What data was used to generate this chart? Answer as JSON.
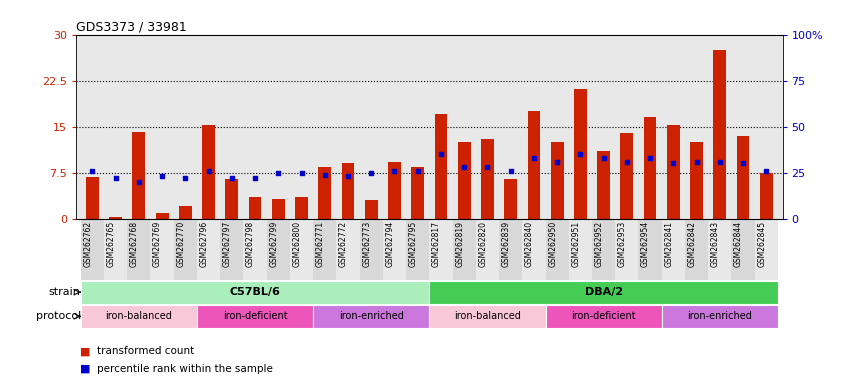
{
  "title": "GDS3373 / 33981",
  "samples": [
    "GSM262762",
    "GSM262765",
    "GSM262768",
    "GSM262769",
    "GSM262770",
    "GSM262796",
    "GSM262797",
    "GSM262798",
    "GSM262799",
    "GSM262800",
    "GSM262771",
    "GSM262772",
    "GSM262773",
    "GSM262794",
    "GSM262795",
    "GSM262817",
    "GSM262819",
    "GSM262820",
    "GSM262839",
    "GSM262840",
    "GSM262950",
    "GSM262951",
    "GSM262952",
    "GSM262953",
    "GSM262954",
    "GSM262841",
    "GSM262842",
    "GSM262843",
    "GSM262844",
    "GSM262845"
  ],
  "red_values": [
    6.8,
    0.2,
    14.2,
    1.0,
    2.0,
    15.2,
    6.5,
    3.5,
    3.2,
    3.5,
    8.5,
    9.0,
    3.0,
    9.2,
    8.5,
    17.0,
    12.5,
    13.0,
    6.5,
    17.5,
    12.5,
    21.2,
    11.0,
    14.0,
    16.5,
    15.2,
    12.5,
    27.5,
    13.5,
    7.5
  ],
  "blue_pct": [
    26,
    22,
    20,
    23,
    22,
    26,
    22,
    22,
    25,
    25,
    24,
    23,
    25,
    26,
    26,
    35,
    28,
    28,
    26,
    33,
    31,
    35,
    33,
    31,
    33,
    30,
    31,
    31,
    30,
    26
  ],
  "ylim_left": [
    0,
    30
  ],
  "ylim_right": [
    0,
    100
  ],
  "yticks_left": [
    0,
    7.5,
    15,
    22.5,
    30
  ],
  "ytick_labels_left": [
    "0",
    "7.5",
    "15",
    "22.5",
    "30"
  ],
  "ytick_labels_right": [
    "0",
    "25",
    "50",
    "75",
    "100%"
  ],
  "strain_groups": [
    {
      "label": "C57BL/6",
      "start": 0,
      "end": 15,
      "color": "#aaeebb"
    },
    {
      "label": "DBA/2",
      "start": 15,
      "end": 30,
      "color": "#44cc55"
    }
  ],
  "protocol_groups": [
    {
      "label": "iron-balanced",
      "start": 0,
      "end": 5,
      "color": "#f9c8d8"
    },
    {
      "label": "iron-deficient",
      "start": 5,
      "end": 10,
      "color": "#ee55bb"
    },
    {
      "label": "iron-enriched",
      "start": 10,
      "end": 15,
      "color": "#cc77dd"
    },
    {
      "label": "iron-balanced",
      "start": 15,
      "end": 20,
      "color": "#f9c8d8"
    },
    {
      "label": "iron-deficient",
      "start": 20,
      "end": 25,
      "color": "#ee55bb"
    },
    {
      "label": "iron-enriched",
      "start": 25,
      "end": 30,
      "color": "#cc77dd"
    }
  ],
  "red_color": "#cc2200",
  "blue_color": "#0000cc",
  "legend_red": "transformed count",
  "legend_blue": "percentile rank within the sample",
  "bar_width": 0.55,
  "plot_bg": "#e8e8e8",
  "cell_colors": [
    "#d8d8d8",
    "#e8e8e8"
  ]
}
